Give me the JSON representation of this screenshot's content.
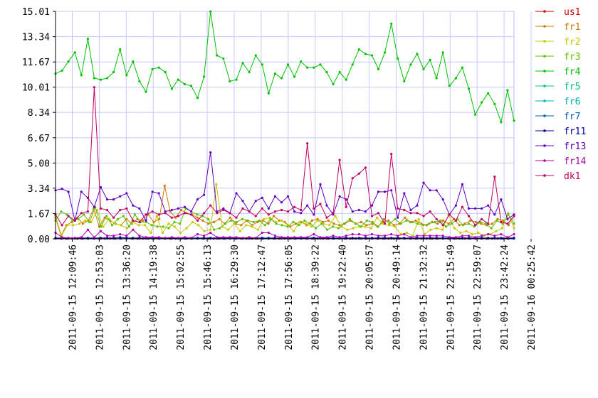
{
  "chart_data": {
    "type": "line",
    "title": "",
    "xlabel": "",
    "ylabel": "",
    "ylim": [
      0,
      15.01
    ],
    "yticks": [
      "0.00",
      "1.67",
      "3.34",
      "5.00",
      "6.67",
      "8.34",
      "10.01",
      "11.67",
      "13.34",
      "15.01"
    ],
    "xticks": [
      "2011-09-15 12:09:46",
      "2011-09-15 12:53:03",
      "2011-09-15 13:36:20",
      "2011-09-15 14:19:38",
      "2011-09-15 15:02:55",
      "2011-09-15 15:46:13",
      "2011-09-15 16:29:30",
      "2011-09-15 17:12:47",
      "2011-09-15 17:56:05",
      "2011-09-15 18:39:22",
      "2011-09-15 19:22:40",
      "2011-09-15 20:05:57",
      "2011-09-15 20:49:14",
      "2011-09-15 21:32:32",
      "2011-09-15 22:15:49",
      "2011-09-15 22:59:07",
      "2011-09-15 23:42:24",
      "2011-09-16 00:25:42"
    ],
    "grid": true,
    "legend_position": "right",
    "series": [
      {
        "name": "us1",
        "color": "#cc0000",
        "values": [
          0.03,
          0.02,
          0.02,
          0.02,
          0.02,
          0.02,
          0.02,
          0.02,
          0.02,
          0.02,
          0.02,
          0.02,
          0.02,
          0.02,
          0.02,
          0.02,
          0.02,
          0.02,
          0.02,
          0.02,
          0.02,
          0.02,
          0.02,
          0.02,
          0.02,
          0.02,
          0.02,
          0.02,
          0.02,
          0.02,
          0.02,
          0.02,
          0.02,
          0.02,
          0.02,
          0.02,
          0.02,
          0.02,
          0.02,
          0.02,
          0.02,
          0.02,
          0.02,
          0.02,
          0.02,
          0.02,
          0.02,
          0.02,
          0.02,
          0.02,
          0.02,
          0.02,
          0.02,
          0.02,
          0.02,
          0.02,
          0.02,
          0.02,
          0.02,
          0.02,
          0.02,
          0.02,
          0.02,
          0.02,
          0.02,
          0.02,
          0.02,
          0.02,
          0.02,
          0.02,
          0.02,
          0.02,
          0.02,
          0.02,
          0.02,
          0.02,
          0.02,
          0.02,
          0.02,
          0.02,
          0.02,
          0.02,
          0.02,
          0.02,
          0.02
        ]
      },
      {
        "name": "fr1",
        "color": "#cc7a00",
        "values": [
          1.4,
          0.2,
          0.9,
          1.1,
          1.4,
          1.0,
          1.2,
          2.0,
          0.8,
          1.4,
          1.2,
          1.0,
          0.9,
          1.3,
          1.0,
          1.3,
          1.2,
          1.6,
          1.1,
          1.3,
          3.5,
          1.8,
          1.4,
          1.9,
          1.7,
          1.6,
          1.4,
          1.2,
          1.0,
          1.1,
          1.3,
          1.0,
          1.4,
          1.0,
          0.9,
          1.2,
          0.9,
          1.1,
          1.2,
          1.0,
          1.5,
          1.2,
          1.1,
          0.8,
          1.0,
          1.1,
          0.9,
          1.2,
          1.3,
          1.1,
          1.2,
          1.0,
          0.9,
          1.0,
          1.2,
          1.0,
          1.1,
          0.9,
          1.0,
          0.8,
          1.1,
          1.2,
          0.9,
          1.0,
          1.4,
          1.1,
          1.2,
          1.0,
          0.9,
          1.1,
          1.0,
          1.2,
          1.0,
          1.3,
          0.9,
          1.0,
          1.2,
          1.1,
          1.0,
          0.9,
          1.0,
          1.3,
          1.2,
          0.9,
          1.5
        ]
      },
      {
        "name": "fr2",
        "color": "#c8c800",
        "values": [
          1.5,
          0.2,
          0.9,
          0.9,
          1.0,
          1.2,
          1.1,
          1.9,
          0.8,
          1.3,
          1.0,
          0.9,
          0.7,
          1.1,
          0.9,
          0.9,
          0.4,
          1.5,
          0.4,
          1.0,
          0.8,
          0.4,
          0.7,
          1.1,
          0.9,
          0.5,
          0.6,
          3.6,
          0.8,
          0.6,
          1.0,
          0.5,
          0.9,
          0.8,
          0.6,
          1.3,
          1.4,
          1.1,
          1.2,
          0.9,
          0.5,
          1.1,
          1.0,
          0.8,
          1.2,
          1.0,
          0.9,
          1.5,
          0.8,
          0.6,
          0.7,
          0.8,
          0.8,
          0.7,
          1.4,
          1.0,
          0.9,
          0.8,
          0.3,
          0.4,
          0.2,
          1.3,
          0.3,
          0.6,
          0.7,
          0.6,
          1.6,
          0.7,
          0.4,
          0.5,
          0.3,
          0.4,
          0.2,
          0.3,
          0.5,
          0.7,
          1.7,
          0.7
        ]
      },
      {
        "name": "fr3",
        "color": "#60c000",
        "values": [
          1.2,
          1.8,
          1.6,
          1.2,
          1.3,
          1.6,
          1.1,
          2.1,
          0.8,
          1.5,
          0.9,
          1.3,
          1.5,
          0.8,
          1.6,
          1.1,
          1.1,
          0.9,
          0.8,
          0.8,
          0.7,
          1.1,
          1.0,
          2.0,
          1.8,
          1.6,
          1.5,
          1.3,
          0.6,
          0.7,
          1.0,
          1.2,
          1.1,
          1.3,
          1.2,
          1.1,
          1.2,
          0.9,
          1.3,
          1.0,
          0.9,
          0.8,
          1.1,
          0.9,
          1.2,
          1.0,
          0.7,
          1.0,
          0.6,
          0.8,
          0.7,
          1.0,
          1.3,
          1.0,
          0.8,
          1.2,
          1.1,
          0.8,
          1.3,
          1.0,
          1.3,
          1.0,
          1.2,
          1.1,
          1.0,
          0.9,
          1.0,
          1.1,
          1.2,
          0.8,
          1.0,
          1.3,
          0.9,
          1.0,
          0.8,
          1.1,
          1.0,
          0.7,
          1.2,
          1.0,
          1.6,
          1.0
        ]
      },
      {
        "name": "fr4",
        "color": "#00c000",
        "values": [
          10.9,
          11.1,
          11.7,
          12.3,
          10.8,
          13.2,
          10.6,
          10.5,
          10.6,
          11.0,
          12.5,
          10.8,
          11.7,
          10.4,
          9.7,
          11.2,
          11.3,
          11.0,
          9.9,
          10.5,
          10.2,
          10.1,
          9.3,
          10.7,
          15.0,
          12.1,
          11.9,
          10.4,
          10.5,
          11.6,
          11.0,
          12.1,
          11.5,
          9.6,
          10.9,
          10.6,
          11.5,
          10.7,
          11.7,
          11.3,
          11.3,
          11.5,
          11.0,
          10.2,
          11.0,
          10.5,
          11.5,
          12.5,
          12.2,
          12.1,
          11.2,
          12.3,
          14.2,
          11.9,
          10.4,
          11.5,
          12.2,
          11.2,
          11.8,
          10.6,
          12.3,
          10.1,
          10.6,
          11.3,
          9.9,
          8.2,
          9.0,
          9.6,
          8.9,
          7.7,
          9.8,
          7.8
        ]
      },
      {
        "name": "fr5",
        "color": "#00c080",
        "values": []
      },
      {
        "name": "fr6",
        "color": "#00b0c0",
        "values": []
      },
      {
        "name": "fr7",
        "color": "#0060c0",
        "values": [
          0.02,
          0.02,
          0.02,
          0.02,
          0.02,
          0.02,
          0.02,
          0.02,
          0.02,
          0.02,
          0.02,
          0.02,
          0.02,
          0.02,
          0.02,
          0.02,
          0.02,
          0.02,
          0.02,
          0.02,
          0.02,
          0.02,
          0.02,
          0.02,
          0.02,
          0.02,
          0.02,
          0.02,
          0.02,
          0.02,
          0.02,
          0.02,
          0.02,
          0.02,
          0.02,
          0.02,
          0.02,
          0.02,
          0.02,
          0.02,
          0.02,
          0.02,
          0.02,
          0.02,
          0.02,
          0.02,
          0.02,
          0.02,
          0.02,
          0.02,
          0.02,
          0.02,
          0.02,
          0.02,
          0.02,
          0.02,
          0.02,
          0.02,
          0.02,
          0.02,
          0.02,
          0.02,
          0.02,
          0.02,
          0.02,
          0.02,
          0.02,
          0.02,
          0.02,
          0.02,
          0.02,
          0.02
        ]
      },
      {
        "name": "fr11",
        "color": "#0000a0",
        "values": [
          0.05,
          0.05,
          0.05,
          0.05,
          0.05,
          0.05,
          0.05,
          0.05,
          0.05,
          0.05,
          0.1,
          0.05,
          0.05,
          0.05,
          0.05,
          0.05,
          0.05,
          0.05,
          0.05,
          0.05,
          0.05,
          0.05,
          0.05,
          0.05,
          0.05,
          0.05,
          0.05,
          0.05,
          0.05,
          0.05,
          0.05,
          0.05,
          0.05,
          0.05,
          0.05,
          0.05,
          0.05,
          0.05,
          0.05,
          0.05,
          0.05,
          0.05,
          0.05,
          0.05,
          0.05,
          0.05,
          0.05,
          0.05,
          0.05,
          0.05,
          0.05,
          0.05,
          0.05,
          0.05,
          0.05,
          0.05,
          0.05,
          0.05,
          0.05,
          0.05,
          0.05,
          0.05,
          0.05,
          0.05,
          0.05,
          0.05,
          0.05,
          0.05,
          0.05,
          0.05,
          0.05,
          0.05
        ]
      },
      {
        "name": "fr13",
        "color": "#6000c0",
        "values": [
          3.2,
          3.3,
          3.1,
          1.2,
          3.1,
          2.7,
          2.1,
          3.4,
          2.6,
          2.6,
          2.8,
          3.0,
          2.2,
          2.0,
          1.2,
          3.1,
          3.0,
          1.8,
          1.9,
          2.0,
          2.1,
          1.8,
          2.6,
          2.9,
          5.7,
          1.8,
          2.0,
          1.7,
          3.0,
          2.5,
          1.8,
          2.5,
          2.7,
          2.0,
          2.8,
          2.4,
          2.8,
          1.8,
          1.7,
          2.2,
          1.6,
          3.6,
          2.2,
          1.6,
          2.8,
          2.6,
          1.8,
          1.9,
          1.8,
          2.2,
          3.1,
          3.1,
          3.2,
          1.4,
          3.0,
          1.9,
          2.2,
          3.7,
          3.2,
          3.2,
          2.6,
          1.6,
          2.2,
          3.6,
          2.0,
          2.0,
          2.0,
          2.2,
          1.6,
          2.6,
          1.3,
          1.6
        ]
      },
      {
        "name": "fr14",
        "color": "#b000b0",
        "values": [
          0.4,
          0.1,
          0.05,
          0.05,
          0.1,
          0.6,
          0.1,
          0.5,
          0.2,
          0.2,
          0.3,
          0.2,
          0.6,
          0.2,
          0.1,
          0.1,
          0.1,
          0.05,
          0.1,
          0.05,
          0.1,
          0.05,
          0.3,
          0.2,
          0.4,
          0.1,
          0.1,
          0.1,
          0.1,
          0.05,
          0.1,
          0.05,
          0.4,
          0.4,
          0.2,
          0.1,
          0.1,
          0.1,
          0.1,
          0.1,
          0.3,
          0.1,
          0.1,
          0.2,
          0.1,
          0.2,
          0.3,
          0.3,
          0.2,
          0.3,
          0.2,
          0.2,
          0.3,
          0.2,
          0.3,
          0.1,
          0.2,
          0.2,
          0.2,
          0.2,
          0.2,
          0.1,
          0.1,
          0.2,
          0.2,
          0.1,
          0.2,
          0.3,
          0.2,
          0.3,
          0.1,
          0.3
        ]
      },
      {
        "name": "dk1",
        "color": "#c00060",
        "values": [
          1.6,
          0.9,
          1.5,
          1.2,
          1.7,
          1.8,
          10.0,
          2.0,
          1.9,
          1.4,
          1.9,
          2.0,
          1.2,
          1.1,
          1.6,
          1.8,
          1.6,
          1.7,
          1.4,
          1.5,
          1.7,
          1.6,
          1.2,
          1.7,
          2.2,
          1.7,
          1.9,
          1.7,
          1.4,
          2.0,
          1.8,
          1.5,
          2.0,
          1.6,
          1.8,
          1.9,
          1.8,
          2.1,
          1.9,
          6.3,
          2.0,
          2.3,
          1.4,
          1.7,
          5.2,
          2.1,
          4.0,
          4.3,
          4.7,
          1.5,
          1.7,
          1.0,
          5.6,
          2.0,
          1.9,
          1.7,
          1.7,
          1.5,
          1.8,
          1.3,
          0.9,
          1.6,
          1.2,
          2.1,
          1.5,
          0.9,
          1.3,
          1.0,
          4.1,
          1.1,
          1.0,
          1.5
        ]
      }
    ]
  }
}
